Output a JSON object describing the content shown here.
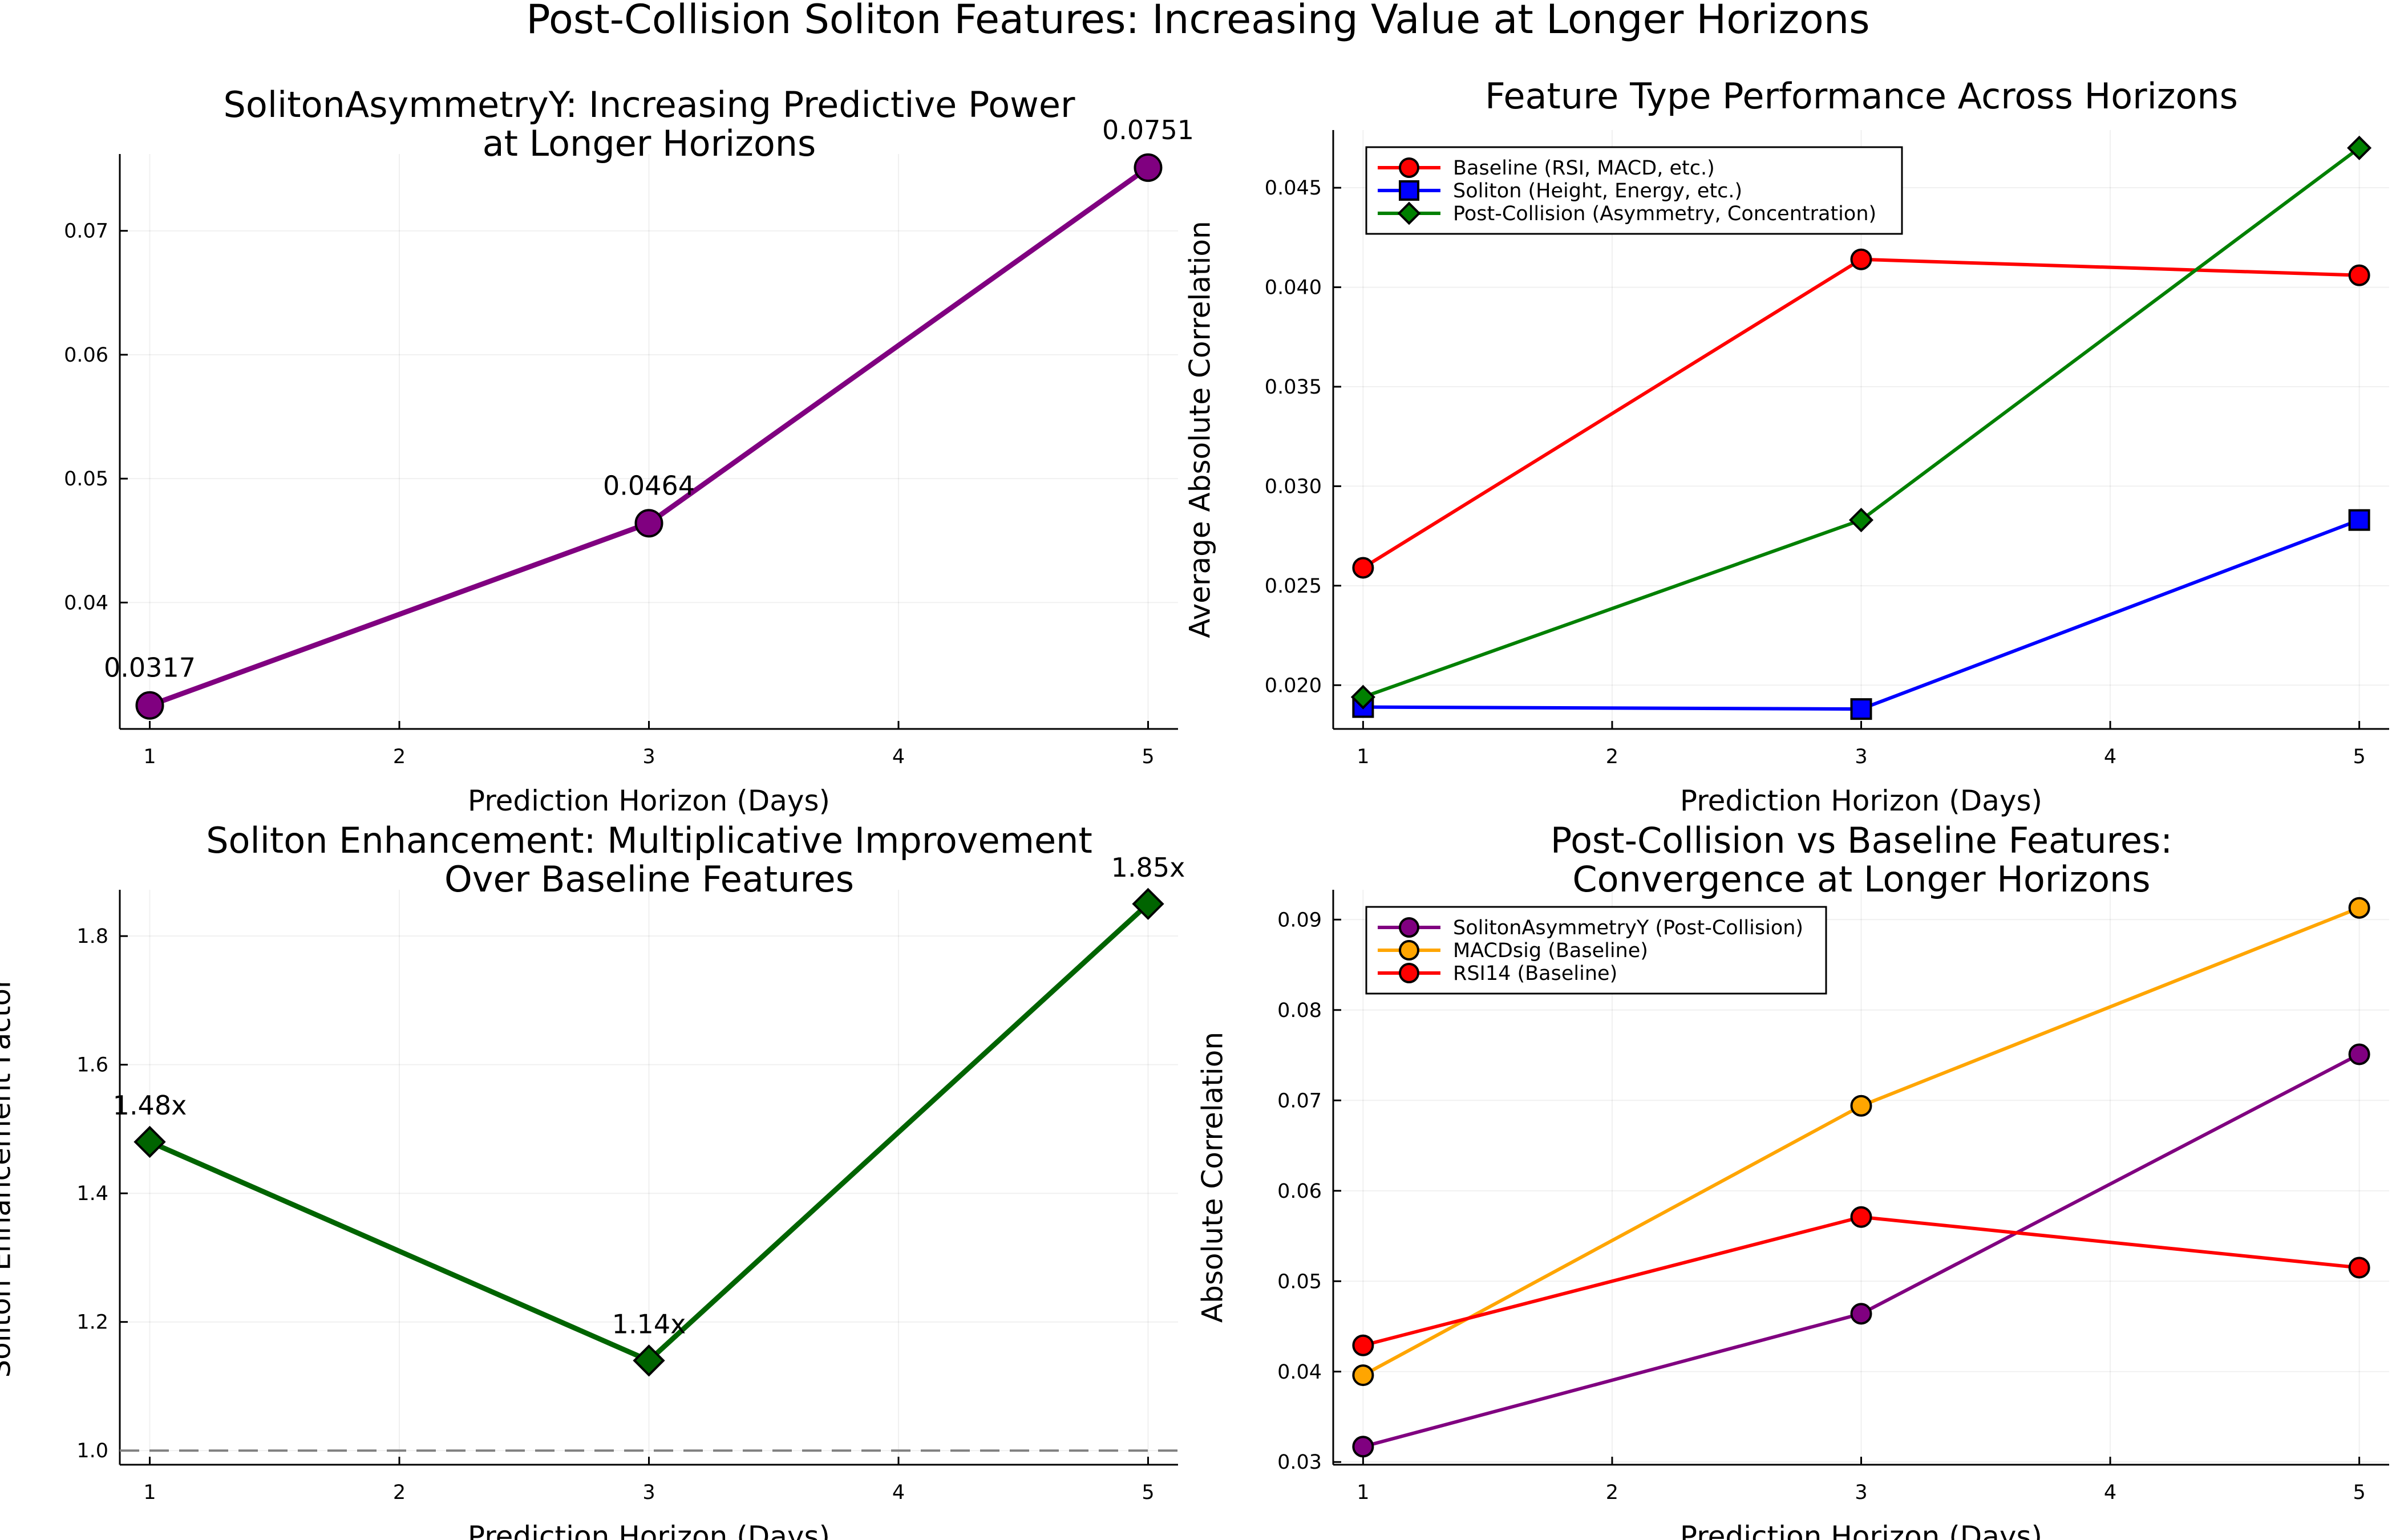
{
  "figure_title": "Post-Collision Soliton Features: Increasing Value at Longer Horizons",
  "chart_data": [
    {
      "type": "line",
      "title": "SolitonAsymmetryY: Increasing Predictive Power\nat Longer Horizons",
      "xlabel": "Prediction Horizon (Days)",
      "ylabel": "",
      "x": [
        1,
        3,
        5
      ],
      "xlim": [
        0.88,
        5.12
      ],
      "ylim": [
        0.0298,
        0.0762
      ],
      "xticks": [
        1,
        2,
        3,
        4,
        5
      ],
      "yticks": [
        0.04,
        0.05,
        0.06,
        0.07
      ],
      "ytick_labels": [
        "0.04",
        "0.05",
        "0.06",
        "0.07"
      ],
      "grid": true,
      "legend": "none",
      "series": [
        {
          "name": "SolitonAsymmetryY",
          "values": [
            0.0317,
            0.0464,
            0.0751
          ],
          "color": "#800080",
          "marker": "circle",
          "line_width": 9,
          "marker_size": 46
        }
      ],
      "data_labels": [
        "0.0317",
        "0.0464",
        "0.0751"
      ]
    },
    {
      "type": "line",
      "title": "Feature Type Performance Across Horizons",
      "xlabel": "Prediction Horizon (Days)",
      "ylabel": "Average Absolute Correlation",
      "x": [
        1,
        3,
        5
      ],
      "xlim": [
        0.88,
        5.12
      ],
      "ylim": [
        0.0178,
        0.0479
      ],
      "xticks": [
        1,
        2,
        3,
        4,
        5
      ],
      "yticks": [
        0.02,
        0.025,
        0.03,
        0.035,
        0.04,
        0.045
      ],
      "ytick_labels": [
        "0.020",
        "0.025",
        "0.030",
        "0.035",
        "0.040",
        "0.045"
      ],
      "grid": true,
      "legend": "top-left",
      "series": [
        {
          "name": "Baseline (RSI, MACD, etc.)",
          "values": [
            0.0259,
            0.0414,
            0.0406
          ],
          "color": "#ff0000",
          "marker": "circle",
          "line_width": 6,
          "marker_size": 34
        },
        {
          "name": "Soliton (Height, Energy, etc.)",
          "values": [
            0.0189,
            0.0188,
            0.0283
          ],
          "color": "#0000ff",
          "marker": "square",
          "line_width": 6,
          "marker_size": 34
        },
        {
          "name": "Post-Collision (Asymmetry, Concentration)",
          "values": [
            0.0194,
            0.0283,
            0.047
          ],
          "color": "#008000",
          "marker": "diamond",
          "line_width": 6,
          "marker_size": 34
        }
      ]
    },
    {
      "type": "line",
      "title": "Soliton Enhancement: Multiplicative Improvement\nOver Baseline Features",
      "xlabel": "Prediction Horizon (Days)",
      "ylabel": "Soliton Enhancement Factor",
      "x": [
        1,
        3,
        5
      ],
      "xlim": [
        0.88,
        5.12
      ],
      "ylim": [
        0.978,
        1.872
      ],
      "xticks": [
        1,
        2,
        3,
        4,
        5
      ],
      "yticks": [
        1.0,
        1.2,
        1.4,
        1.6,
        1.8
      ],
      "ytick_labels": [
        "1.0",
        "1.2",
        "1.4",
        "1.6",
        "1.8"
      ],
      "grid": true,
      "legend": "none",
      "series": [
        {
          "name": "Enhancement Factor",
          "values": [
            1.48,
            1.14,
            1.85
          ],
          "color": "#006400",
          "marker": "diamond",
          "line_width": 9,
          "marker_size": 46
        }
      ],
      "data_labels": [
        "1.48x",
        "1.14x",
        "1.85x"
      ],
      "reference_line": {
        "y": 1.0,
        "style": "dashed",
        "color": "#808080"
      }
    },
    {
      "type": "line",
      "title": "Post-Collision vs Baseline Features:\nConvergence at Longer Horizons",
      "xlabel": "Prediction Horizon (Days)",
      "ylabel": "Absolute Correlation",
      "x": [
        1,
        3,
        5
      ],
      "xlim": [
        0.88,
        5.12
      ],
      "ylim": [
        0.0297,
        0.0933
      ],
      "xticks": [
        1,
        2,
        3,
        4,
        5
      ],
      "yticks": [
        0.03,
        0.04,
        0.05,
        0.06,
        0.07,
        0.08,
        0.09
      ],
      "ytick_labels": [
        "0.03",
        "0.04",
        "0.05",
        "0.06",
        "0.07",
        "0.08",
        "0.09"
      ],
      "grid": true,
      "legend": "top-left",
      "series": [
        {
          "name": "SolitonAsymmetryY (Post-Collision)",
          "values": [
            0.0317,
            0.0464,
            0.0751
          ],
          "color": "#800080",
          "marker": "circle",
          "line_width": 6,
          "marker_size": 34
        },
        {
          "name": "MACDsig (Baseline)",
          "values": [
            0.0396,
            0.0694,
            0.0913
          ],
          "color": "#ffa500",
          "marker": "circle",
          "line_width": 6,
          "marker_size": 34
        },
        {
          "name": "RSI14 (Baseline)",
          "values": [
            0.0429,
            0.0571,
            0.0515
          ],
          "color": "#ff0000",
          "marker": "circle",
          "line_width": 6,
          "marker_size": 34
        }
      ]
    }
  ]
}
